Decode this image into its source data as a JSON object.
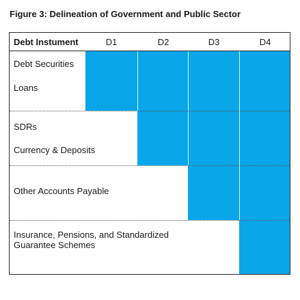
{
  "figure": {
    "title": "Figure 3: Delineation of Government and Public Sector"
  },
  "table": {
    "header": {
      "instrument_label": "Debt Instument",
      "columns": [
        "D1",
        "D2",
        "D3",
        "D4"
      ]
    },
    "rows": [
      "Debt Securities",
      "Loans",
      "SDRs",
      "Currency & Deposits",
      "Other Accounts Payable",
      "Insurance, Pensions, and Standardized Guarantee Schemes"
    ],
    "coverage": {
      "D1": [
        "Debt Securities",
        "Loans"
      ],
      "D2": [
        "Debt Securities",
        "Loans",
        "SDRs",
        "Currency & Deposits"
      ],
      "D3": [
        "Debt Securities",
        "Loans",
        "SDRs",
        "Currency & Deposits",
        "Other Accounts Payable"
      ],
      "D4": [
        "Debt Securities",
        "Loans",
        "SDRs",
        "Currency & Deposits",
        "Other Accounts Payable",
        "Insurance, Pensions, and Standardized Guarantee Schemes"
      ]
    },
    "highlight_color": "#0aa6ea"
  }
}
